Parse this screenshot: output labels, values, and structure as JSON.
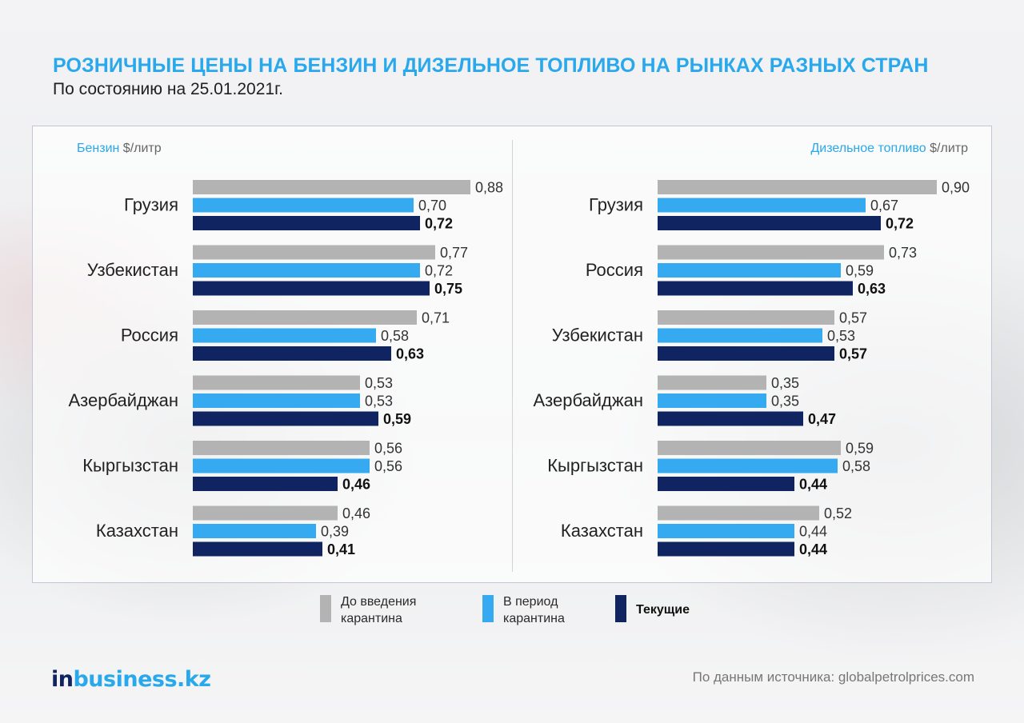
{
  "header": {
    "title": "РОЗНИЧНЫЕ ЦЕНЫ НА БЕНЗИН И ДИЗЕЛЬНОЕ ТОПЛИВО НА РЫНКАХ РАЗНЫХ СТРАН",
    "subtitle": "По состоянию на 25.01.2021г."
  },
  "chart_data": [
    {
      "type": "bar",
      "orientation": "horizontal",
      "title_highlight": "Бензин",
      "title_unit": "$/литр",
      "categories": [
        "Грузия",
        "Узбекистан",
        "Россия",
        "Азербайджан",
        "Кыргызстан",
        "Казахстан"
      ],
      "series": [
        {
          "name": "До введения карантина",
          "values": [
            0.88,
            0.77,
            0.71,
            0.53,
            0.56,
            0.46
          ],
          "labels": [
            "0,88",
            "0,77",
            "0,71",
            "0,53",
            "0,56",
            "0,46"
          ]
        },
        {
          "name": "В период карантина",
          "values": [
            0.7,
            0.72,
            0.58,
            0.53,
            0.56,
            0.39
          ],
          "labels": [
            "0,70",
            "0,72",
            "0,58",
            "0,53",
            "0,56",
            "0,39"
          ]
        },
        {
          "name": "Текущие",
          "values": [
            0.72,
            0.75,
            0.63,
            0.59,
            0.46,
            0.41
          ],
          "labels": [
            "0,72",
            "0,75",
            "0,63",
            "0,59",
            "0,46",
            "0,41"
          ]
        }
      ],
      "xlim": [
        0,
        1.0
      ]
    },
    {
      "type": "bar",
      "orientation": "horizontal",
      "title_highlight": "Дизельное топливо",
      "title_unit": "$/литр",
      "categories": [
        "Грузия",
        "Россия",
        "Узбекистан",
        "Азербайджан",
        "Кыргызстан",
        "Казахстан"
      ],
      "series": [
        {
          "name": "До введения карантина",
          "values": [
            0.9,
            0.73,
            0.57,
            0.35,
            0.59,
            0.52
          ],
          "labels": [
            "0,90",
            "0,73",
            "0,57",
            "0,35",
            "0,59",
            "0,52"
          ]
        },
        {
          "name": "В период карантина",
          "values": [
            0.67,
            0.59,
            0.53,
            0.35,
            0.58,
            0.44
          ],
          "labels": [
            "0,67",
            "0,59",
            "0,53",
            "0,35",
            "0,58",
            "0,44"
          ]
        },
        {
          "name": "Текущие",
          "values": [
            0.72,
            0.63,
            0.57,
            0.47,
            0.44,
            0.44
          ],
          "labels": [
            "0,72",
            "0,63",
            "0,57",
            "0,47",
            "0,44",
            "0,44"
          ]
        }
      ],
      "xlim": [
        0,
        1.0
      ]
    }
  ],
  "colors": {
    "before": "#b3b3b3",
    "during": "#35aaf0",
    "current": "#0f2460",
    "accent": "#29a8ec"
  },
  "legend": [
    {
      "line1": "До введения",
      "line2": "карантина",
      "color": "#b3b3b3"
    },
    {
      "line1": "В период",
      "line2": "карантина",
      "color": "#35aaf0"
    },
    {
      "label": "Текущие",
      "color": "#0f2460"
    }
  ],
  "footer": {
    "logo_part1": "in",
    "logo_part2": "business.kz",
    "source": "По данным источника: globalpetrolprices.com"
  }
}
